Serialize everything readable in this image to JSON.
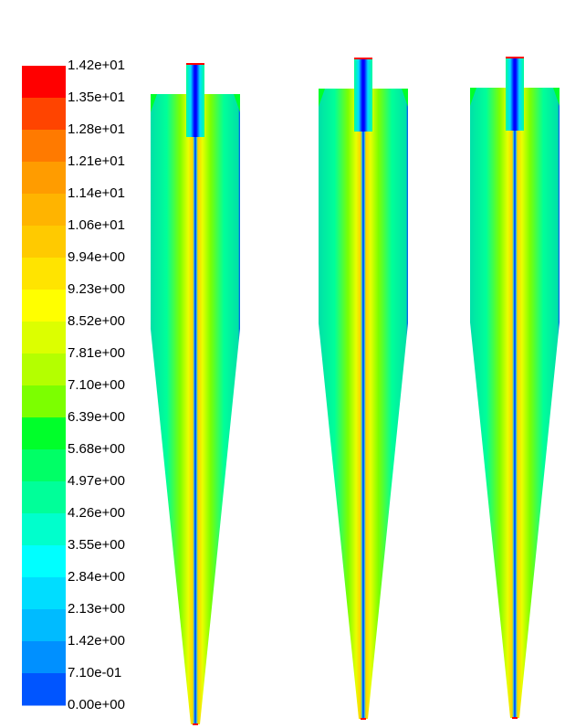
{
  "colorbar": {
    "labels": [
      "1.42e+01",
      "1.35e+01",
      "1.28e+01",
      "1.21e+01",
      "1.14e+01",
      "1.06e+01",
      "9.94e+00",
      "9.23e+00",
      "8.52e+00",
      "7.81e+00",
      "7.10e+00",
      "6.39e+00",
      "5.68e+00",
      "4.97e+00",
      "4.26e+00",
      "3.55e+00",
      "2.84e+00",
      "2.13e+00",
      "1.42e+00",
      "7.10e-01",
      "0.00e+00"
    ],
    "colors": [
      "#ff0000",
      "#ff4400",
      "#ff7a00",
      "#ff9c00",
      "#ffb400",
      "#ffca00",
      "#ffe400",
      "#ffff00",
      "#dcff00",
      "#b4ff00",
      "#7cff00",
      "#00ff2a",
      "#00ff66",
      "#00ff99",
      "#00ffcc",
      "#00ffff",
      "#00ddff",
      "#00bbff",
      "#0090ff",
      "#0055ff",
      "#0000ff"
    ]
  }
}
